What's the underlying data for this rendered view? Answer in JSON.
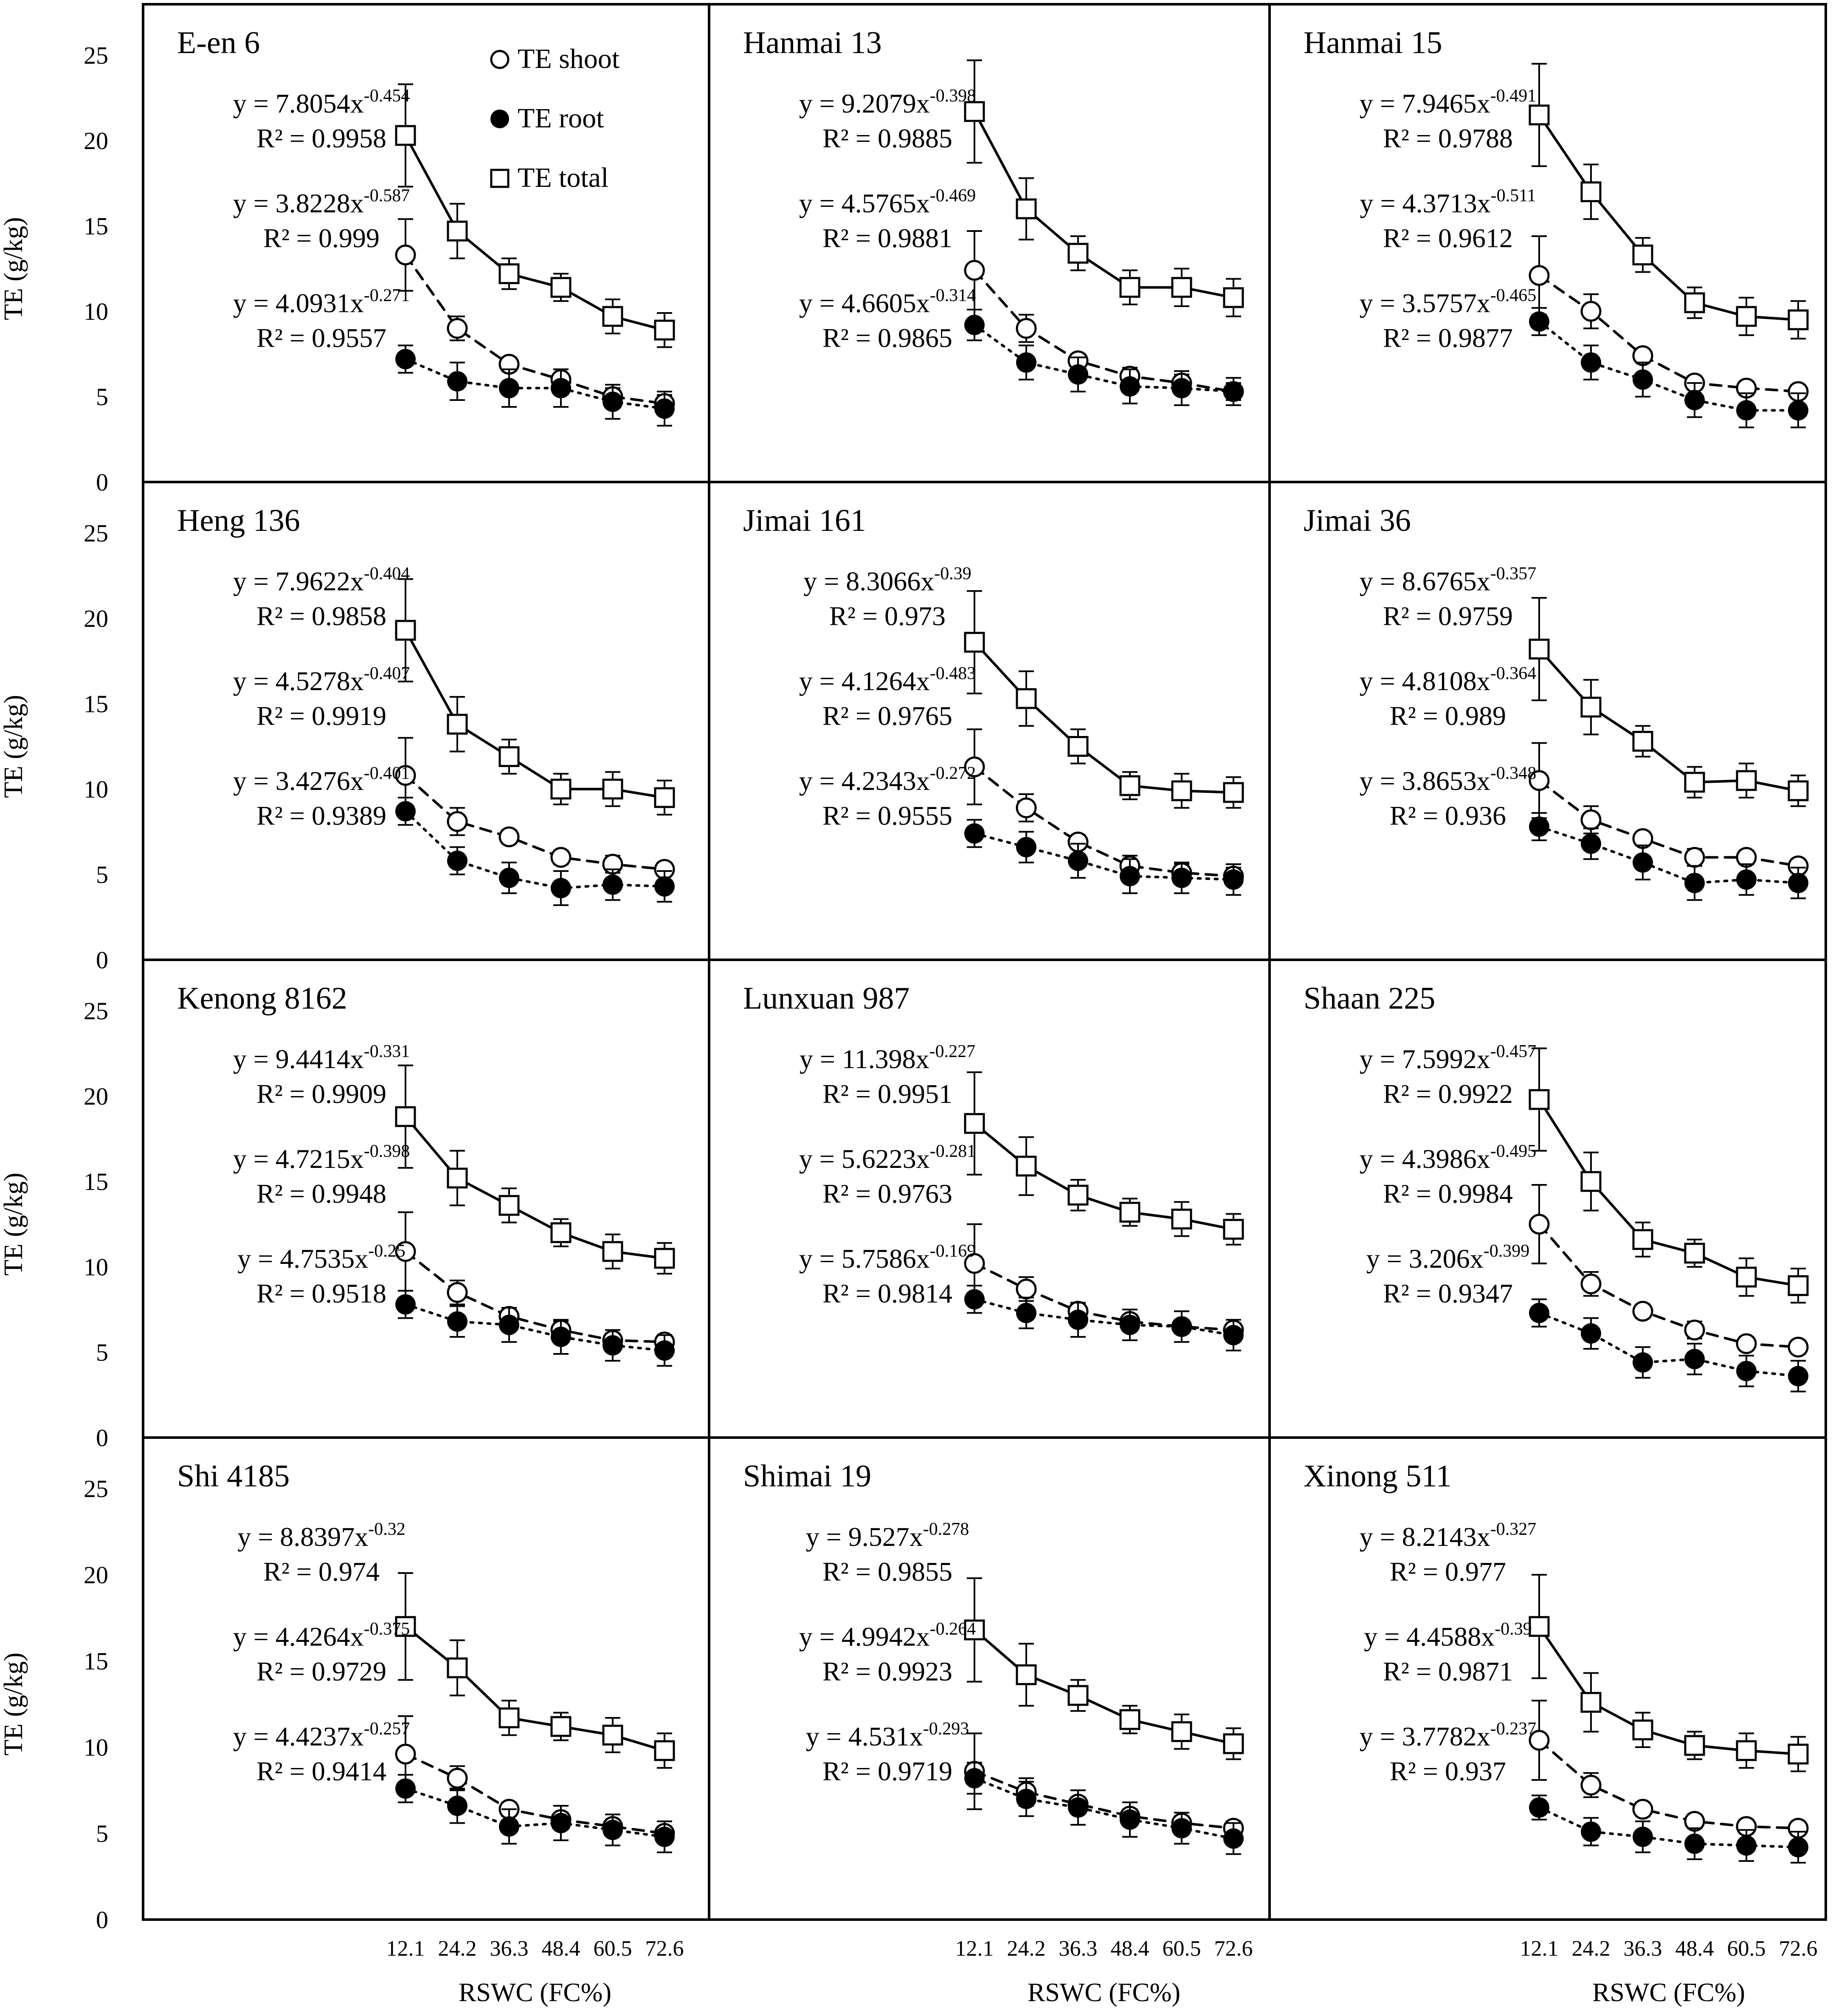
{
  "figure": {
    "ylabel": "TE (g/kg)",
    "xlabel": "RSWC (FC%)",
    "yticks": [
      "0",
      "5",
      "10",
      "15",
      "20",
      "25"
    ],
    "xticks": [
      "12.1",
      "24.2",
      "36.3",
      "48.4",
      "60.5",
      "72.6"
    ],
    "legend": [
      {
        "key": "shoot",
        "label": "TE shoot",
        "marker": "open-circle",
        "line": "dashed"
      },
      {
        "key": "root",
        "label": "TE root",
        "marker": "filled-circle",
        "line": "dotted"
      },
      {
        "key": "total",
        "label": "TE total",
        "marker": "open-square",
        "line": "solid"
      }
    ]
  },
  "chart_data": [
    {
      "type": "scatter",
      "title": "E-en 6",
      "x": [
        12.1,
        24.2,
        36.3,
        48.4,
        60.5,
        72.6
      ],
      "ylim": [
        0,
        25
      ],
      "xlabel": "RSWC (FC%)",
      "ylabel": "TE (g/kg)",
      "series": [
        {
          "name": "TE total",
          "values": [
            20.3,
            14.7,
            12.2,
            11.4,
            9.7,
            8.9
          ],
          "errors": [
            3.0,
            1.6,
            0.9,
            0.8,
            1.0,
            1.0
          ],
          "eq_main": "y = 7.8054x",
          "eq_exp": "-0.454",
          "r2": "R² = 0.9958"
        },
        {
          "name": "TE shoot",
          "values": [
            13.3,
            9.0,
            6.9,
            6.0,
            5.0,
            4.6
          ],
          "errors": [
            2.1,
            0.7,
            0.4,
            0.6,
            0.5,
            0.5
          ],
          "eq_main": "y = 3.8228x",
          "eq_exp": "-0.587",
          "r2": "R² = 0.999"
        },
        {
          "name": "TE root",
          "values": [
            7.2,
            5.9,
            5.5,
            5.5,
            4.7,
            4.3
          ],
          "errors": [
            0.8,
            1.1,
            1.1,
            1.1,
            1.0,
            1.0
          ],
          "eq_main": "y = 4.0931x",
          "eq_exp": "-0.271",
          "r2": "R² = 0.9557"
        }
      ]
    },
    {
      "type": "scatter",
      "title": "Hanmai 13",
      "x": [
        12.1,
        24.2,
        36.3,
        48.4,
        60.5,
        72.6
      ],
      "ylim": [
        0,
        25
      ],
      "xlabel": "RSWC (FC%)",
      "ylabel": "TE (g/kg)",
      "series": [
        {
          "name": "TE total",
          "values": [
            21.7,
            16.0,
            13.4,
            11.4,
            11.4,
            10.8
          ],
          "errors": [
            3.0,
            1.8,
            1.0,
            1.0,
            1.1,
            1.1
          ],
          "eq_main": "y = 9.2079x",
          "eq_exp": "-0.398",
          "r2": "R² = 0.9885"
        },
        {
          "name": "TE shoot",
          "values": [
            12.4,
            9.0,
            7.1,
            6.2,
            5.8,
            5.3
          ],
          "errors": [
            2.3,
            0.8,
            0.4,
            0.5,
            0.5,
            0.5
          ],
          "eq_main": "y = 4.5765x",
          "eq_exp": "-0.469",
          "r2": "R² = 0.9881"
        },
        {
          "name": "TE root",
          "values": [
            9.2,
            7.0,
            6.3,
            5.6,
            5.5,
            5.3
          ],
          "errors": [
            0.9,
            1.0,
            1.0,
            1.0,
            1.0,
            0.8
          ],
          "eq_main": "y = 4.6605x",
          "eq_exp": "-0.314",
          "r2": "R² = 0.9865"
        }
      ]
    },
    {
      "type": "scatter",
      "title": "Hanmai 15",
      "x": [
        12.1,
        24.2,
        36.3,
        48.4,
        60.5,
        72.6
      ],
      "ylim": [
        0,
        25
      ],
      "xlabel": "RSWC (FC%)",
      "ylabel": "TE (g/kg)",
      "series": [
        {
          "name": "TE total",
          "values": [
            21.5,
            17.0,
            13.3,
            10.5,
            9.7,
            9.5
          ],
          "errors": [
            3.0,
            1.6,
            1.0,
            0.9,
            1.1,
            1.1
          ],
          "eq_main": "y = 7.9465x",
          "eq_exp": "-0.491",
          "r2": "R² = 0.9788"
        },
        {
          "name": "TE shoot",
          "values": [
            12.1,
            10.0,
            7.4,
            5.8,
            5.5,
            5.3
          ],
          "errors": [
            2.3,
            1.0,
            0.4,
            0.4,
            0.4,
            0.4
          ],
          "eq_main": "y = 4.3713x",
          "eq_exp": "-0.511",
          "r2": "R² = 0.9612"
        },
        {
          "name": "TE root",
          "values": [
            9.4,
            7.0,
            6.0,
            4.8,
            4.2,
            4.2
          ],
          "errors": [
            0.8,
            1.0,
            1.0,
            1.0,
            1.0,
            1.0
          ],
          "eq_main": "y = 3.5757x",
          "eq_exp": "-0.465",
          "r2": "R² = 0.9877"
        }
      ]
    },
    {
      "type": "scatter",
      "title": "Heng 136",
      "x": [
        12.1,
        24.2,
        36.3,
        48.4,
        60.5,
        72.6
      ],
      "ylim": [
        0,
        25
      ],
      "xlabel": "RSWC (FC%)",
      "ylabel": "TE (g/kg)",
      "series": [
        {
          "name": "TE total",
          "values": [
            19.3,
            13.8,
            11.9,
            10.0,
            10.0,
            9.5
          ],
          "errors": [
            3.0,
            1.6,
            1.0,
            0.9,
            1.0,
            1.0
          ],
          "eq_main": "y = 7.9622x",
          "eq_exp": "-0.404",
          "r2": "R² = 0.9858"
        },
        {
          "name": "TE shoot",
          "values": [
            10.8,
            8.1,
            7.2,
            6.0,
            5.6,
            5.3
          ],
          "errors": [
            2.2,
            0.8,
            0.4,
            0.4,
            0.5,
            0.4
          ],
          "eq_main": "y = 4.5278x",
          "eq_exp": "-0.407",
          "r2": "R² = 0.9919"
        },
        {
          "name": "TE root",
          "values": [
            8.7,
            5.8,
            4.8,
            4.2,
            4.4,
            4.3
          ],
          "errors": [
            0.8,
            0.8,
            0.9,
            1.0,
            0.9,
            0.9
          ],
          "eq_main": "y = 3.4276x",
          "eq_exp": "-0.401",
          "r2": "R² = 0.9389"
        }
      ]
    },
    {
      "type": "scatter",
      "title": "Jimai 161",
      "x": [
        12.1,
        24.2,
        36.3,
        48.4,
        60.5,
        72.6
      ],
      "ylim": [
        0,
        25
      ],
      "xlabel": "RSWC (FC%)",
      "ylabel": "TE (g/kg)",
      "series": [
        {
          "name": "TE total",
          "values": [
            18.6,
            15.3,
            12.5,
            10.2,
            9.9,
            9.8
          ],
          "errors": [
            3.0,
            1.6,
            1.0,
            0.8,
            1.0,
            0.9
          ],
          "eq_main": "y = 8.3066x",
          "eq_exp": "-0.39",
          "r2": "R² = 0.973"
        },
        {
          "name": "TE shoot",
          "values": [
            11.3,
            8.9,
            6.9,
            5.5,
            5.1,
            4.9
          ],
          "errors": [
            2.2,
            0.8,
            0.4,
            0.6,
            0.5,
            0.5
          ],
          "eq_main": "y = 4.1264x",
          "eq_exp": "-0.483",
          "r2": "R² = 0.9765"
        },
        {
          "name": "TE root",
          "values": [
            7.4,
            6.6,
            5.8,
            4.9,
            4.8,
            4.7
          ],
          "errors": [
            0.8,
            0.9,
            1.0,
            1.0,
            0.9,
            0.9
          ],
          "eq_main": "y = 4.2343x",
          "eq_exp": "-0.272",
          "r2": "R² = 0.9555"
        }
      ]
    },
    {
      "type": "scatter",
      "title": "Jimai 36",
      "x": [
        12.1,
        24.2,
        36.3,
        48.4,
        60.5,
        72.6
      ],
      "ylim": [
        0,
        25
      ],
      "xlabel": "RSWC (FC%)",
      "ylabel": "TE (g/kg)",
      "series": [
        {
          "name": "TE total",
          "values": [
            18.2,
            14.8,
            12.8,
            10.4,
            10.5,
            9.9
          ],
          "errors": [
            3.0,
            1.6,
            0.9,
            0.9,
            1.0,
            0.9
          ],
          "eq_main": "y = 8.6765x",
          "eq_exp": "-0.357",
          "r2": "R² = 0.9759"
        },
        {
          "name": "TE shoot",
          "values": [
            10.5,
            8.2,
            7.1,
            6.0,
            6.0,
            5.5
          ],
          "errors": [
            2.2,
            0.8,
            0.4,
            0.5,
            0.4,
            0.4
          ],
          "eq_main": "y = 4.8108x",
          "eq_exp": "-0.364",
          "r2": "R² = 0.989"
        },
        {
          "name": "TE root",
          "values": [
            7.8,
            6.8,
            5.7,
            4.5,
            4.7,
            4.5
          ],
          "errors": [
            0.8,
            0.9,
            1.0,
            1.0,
            0.9,
            0.9
          ],
          "eq_main": "y = 3.8653x",
          "eq_exp": "-0.348",
          "r2": "R² = 0.936"
        }
      ]
    },
    {
      "type": "scatter",
      "title": "Kenong 8162",
      "x": [
        12.1,
        24.2,
        36.3,
        48.4,
        60.5,
        72.6
      ],
      "ylim": [
        0,
        25
      ],
      "xlabel": "RSWC (FC%)",
      "ylabel": "TE (g/kg)",
      "series": [
        {
          "name": "TE total",
          "values": [
            18.8,
            15.2,
            13.6,
            12.0,
            10.9,
            10.5
          ],
          "errors": [
            3.0,
            1.6,
            1.0,
            0.8,
            1.0,
            0.9
          ],
          "eq_main": "y = 9.4414x",
          "eq_exp": "-0.331",
          "r2": "R² = 0.9909"
        },
        {
          "name": "TE shoot",
          "values": [
            10.9,
            8.5,
            7.1,
            6.3,
            5.7,
            5.6
          ],
          "errors": [
            2.3,
            0.7,
            0.4,
            0.5,
            0.4,
            0.4
          ],
          "eq_main": "y = 4.7215x",
          "eq_exp": "-0.398",
          "r2": "R² = 0.9948"
        },
        {
          "name": "TE root",
          "values": [
            7.8,
            6.8,
            6.6,
            5.9,
            5.4,
            5.1
          ],
          "errors": [
            0.8,
            0.9,
            1.0,
            1.0,
            0.9,
            0.9
          ],
          "eq_main": "y = 4.7535x",
          "eq_exp": "-0.25",
          "r2": "R² = 0.9518"
        }
      ]
    },
    {
      "type": "scatter",
      "title": "Lunxuan 987",
      "x": [
        12.1,
        24.2,
        36.3,
        48.4,
        60.5,
        72.6
      ],
      "ylim": [
        0,
        25
      ],
      "xlabel": "RSWC (FC%)",
      "ylabel": "TE (g/kg)",
      "series": [
        {
          "name": "TE total",
          "values": [
            18.4,
            15.9,
            14.2,
            13.2,
            12.8,
            12.2
          ],
          "errors": [
            3.0,
            1.7,
            0.9,
            0.8,
            1.0,
            0.9
          ],
          "eq_main": "y = 11.398x",
          "eq_exp": "-0.227",
          "r2": "R² = 0.9951"
        },
        {
          "name": "TE shoot",
          "values": [
            10.2,
            8.7,
            7.4,
            6.8,
            6.5,
            6.3
          ],
          "errors": [
            2.3,
            0.7,
            0.4,
            0.4,
            0.4,
            0.4
          ],
          "eq_main": "y = 5.6223x",
          "eq_exp": "-0.281",
          "r2": "R² = 0.9763"
        },
        {
          "name": "TE root",
          "values": [
            8.1,
            7.3,
            6.9,
            6.6,
            6.5,
            6.0
          ],
          "errors": [
            0.8,
            0.9,
            1.0,
            0.9,
            0.9,
            0.9
          ],
          "eq_main": "y = 5.7586x",
          "eq_exp": "-0.169",
          "r2": "R² = 0.9814"
        }
      ]
    },
    {
      "type": "scatter",
      "title": "Shaan 225",
      "x": [
        12.1,
        24.2,
        36.3,
        48.4,
        60.5,
        72.6
      ],
      "ylim": [
        0,
        25
      ],
      "xlabel": "RSWC (FC%)",
      "ylabel": "TE (g/kg)",
      "series": [
        {
          "name": "TE total",
          "values": [
            19.8,
            15.0,
            11.6,
            10.8,
            9.4,
            8.9
          ],
          "errors": [
            3.0,
            1.7,
            1.0,
            0.8,
            1.1,
            1.0
          ],
          "eq_main": "y = 7.5992x",
          "eq_exp": "-0.457",
          "r2": "R² = 0.9922"
        },
        {
          "name": "TE shoot",
          "values": [
            12.5,
            9.0,
            7.4,
            6.3,
            5.5,
            5.3
          ],
          "errors": [
            2.3,
            0.7,
            0.4,
            0.5,
            0.4,
            0.4
          ],
          "eq_main": "y = 4.3986x",
          "eq_exp": "-0.495",
          "r2": "R² = 0.9984"
        },
        {
          "name": "TE root",
          "values": [
            7.3,
            6.1,
            4.4,
            4.6,
            3.9,
            3.6
          ],
          "errors": [
            0.8,
            0.9,
            0.9,
            0.9,
            0.9,
            0.9
          ],
          "eq_main": "y = 3.206x",
          "eq_exp": "-0.399",
          "r2": "R² = 0.9347"
        }
      ]
    },
    {
      "type": "scatter",
      "title": "Shi 4185",
      "x": [
        12.1,
        24.2,
        36.3,
        48.4,
        60.5,
        72.6
      ],
      "ylim": [
        0,
        25
      ],
      "xlabel": "RSWC (FC%)",
      "ylabel": "TE (g/kg)",
      "series": [
        {
          "name": "TE total",
          "values": [
            17.0,
            14.6,
            11.7,
            11.2,
            10.7,
            9.8
          ],
          "errors": [
            3.1,
            1.6,
            1.0,
            0.8,
            1.0,
            1.0
          ],
          "eq_main": "y = 8.8397x",
          "eq_exp": "-0.32",
          "r2": "R² = 0.974"
        },
        {
          "name": "TE shoot",
          "values": [
            9.6,
            8.2,
            6.4,
            5.8,
            5.4,
            5.0
          ],
          "errors": [
            2.2,
            0.7,
            0.4,
            0.4,
            0.4,
            0.4
          ],
          "eq_main": "y = 4.4264x",
          "eq_exp": "-0.375",
          "r2": "R² = 0.9729"
        },
        {
          "name": "TE root",
          "values": [
            7.6,
            6.6,
            5.4,
            5.6,
            5.2,
            4.8
          ],
          "errors": [
            0.8,
            1.0,
            1.0,
            1.0,
            0.9,
            0.9
          ],
          "eq_main": "y = 4.4237x",
          "eq_exp": "-0.257",
          "r2": "R² = 0.9414"
        }
      ]
    },
    {
      "type": "scatter",
      "title": "Shimai 19",
      "x": [
        12.1,
        24.2,
        36.3,
        48.4,
        60.5,
        72.6
      ],
      "ylim": [
        0,
        25
      ],
      "xlabel": "RSWC (FC%)",
      "ylabel": "TE (g/kg)",
      "series": [
        {
          "name": "TE total",
          "values": [
            16.8,
            14.2,
            13.0,
            11.6,
            10.9,
            10.2
          ],
          "errors": [
            3.0,
            1.8,
            0.9,
            0.8,
            1.0,
            0.9
          ],
          "eq_main": "y = 9.527x",
          "eq_exp": "-0.278",
          "r2": "R² = 0.9855"
        },
        {
          "name": "TE shoot",
          "values": [
            8.6,
            7.4,
            6.7,
            6.0,
            5.6,
            5.3
          ],
          "errors": [
            2.2,
            0.8,
            0.4,
            0.4,
            0.4,
            0.4
          ],
          "eq_main": "y = 4.9942x",
          "eq_exp": "-0.264",
          "r2": "R² = 0.9923"
        },
        {
          "name": "TE root",
          "values": [
            8.2,
            7.0,
            6.5,
            5.8,
            5.3,
            4.7
          ],
          "errors": [
            0.9,
            1.0,
            1.0,
            1.0,
            0.9,
            0.9
          ],
          "eq_main": "y = 4.531x",
          "eq_exp": "-0.293",
          "r2": "R² = 0.9719"
        }
      ]
    },
    {
      "type": "scatter",
      "title": "Xinong 511",
      "x": [
        12.1,
        24.2,
        36.3,
        48.4,
        60.5,
        72.6
      ],
      "ylim": [
        0,
        25
      ],
      "xlabel": "RSWC (FC%)",
      "ylabel": "TE (g/kg)",
      "series": [
        {
          "name": "TE total",
          "values": [
            17.0,
            12.6,
            11.0,
            10.1,
            9.8,
            9.6
          ],
          "errors": [
            3.0,
            1.7,
            1.0,
            0.8,
            1.0,
            1.0
          ],
          "eq_main": "y = 8.2143x",
          "eq_exp": "-0.327",
          "r2": "R² = 0.977"
        },
        {
          "name": "TE shoot",
          "values": [
            10.4,
            7.8,
            6.4,
            5.7,
            5.4,
            5.3
          ],
          "errors": [
            2.3,
            0.7,
            0.4,
            0.4,
            0.4,
            0.4
          ],
          "eq_main": "y = 4.4588x",
          "eq_exp": "-0.39",
          "r2": "R² = 0.9871"
        },
        {
          "name": "TE root",
          "values": [
            6.5,
            5.1,
            4.8,
            4.4,
            4.3,
            4.2
          ],
          "errors": [
            0.7,
            0.8,
            0.9,
            0.9,
            0.9,
            0.9
          ],
          "eq_main": "y = 3.7782x",
          "eq_exp": "-0.237",
          "r2": "R² = 0.937"
        }
      ]
    }
  ]
}
